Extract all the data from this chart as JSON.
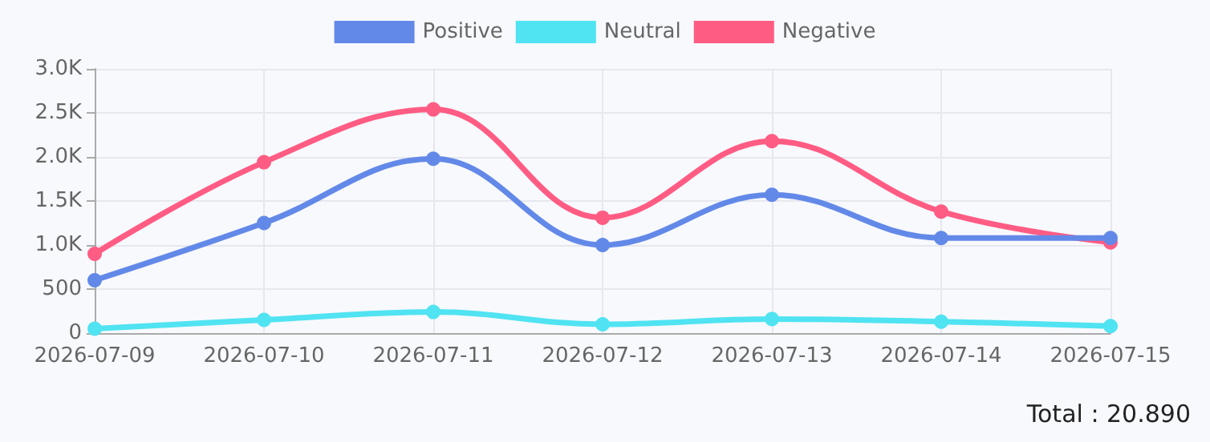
{
  "chart_data": {
    "type": "line",
    "categories": [
      "2026-07-09",
      "2026-07-10",
      "2026-07-11",
      "2026-07-12",
      "2026-07-13",
      "2026-07-14",
      "2026-07-15"
    ],
    "series": [
      {
        "name": "Positive",
        "color": "#6389e8",
        "values": [
          600,
          1250,
          1980,
          1000,
          1570,
          1080,
          1080
        ]
      },
      {
        "name": "Neutral",
        "color": "#50e3f2",
        "values": [
          50,
          150,
          240,
          100,
          160,
          130,
          80
        ]
      },
      {
        "name": "Negative",
        "color": "#ff5c84",
        "values": [
          900,
          1940,
          2540,
          1310,
          2180,
          1380,
          1030
        ]
      }
    ],
    "ylim": [
      0,
      3000
    ],
    "yticks": [
      0,
      500,
      {
        "value": 1000,
        "label": "1.0K"
      },
      {
        "value": 1500,
        "label": "1.5K"
      },
      {
        "value": 2000,
        "label": "2.0K"
      },
      {
        "value": 2500,
        "label": "2.5K"
      },
      {
        "value": 3000,
        "label": "3.0K"
      }
    ],
    "grid": true,
    "legend": "top",
    "marker": "circle",
    "line_style": "solid",
    "annotations": [
      "Total : 20.890"
    ]
  }
}
